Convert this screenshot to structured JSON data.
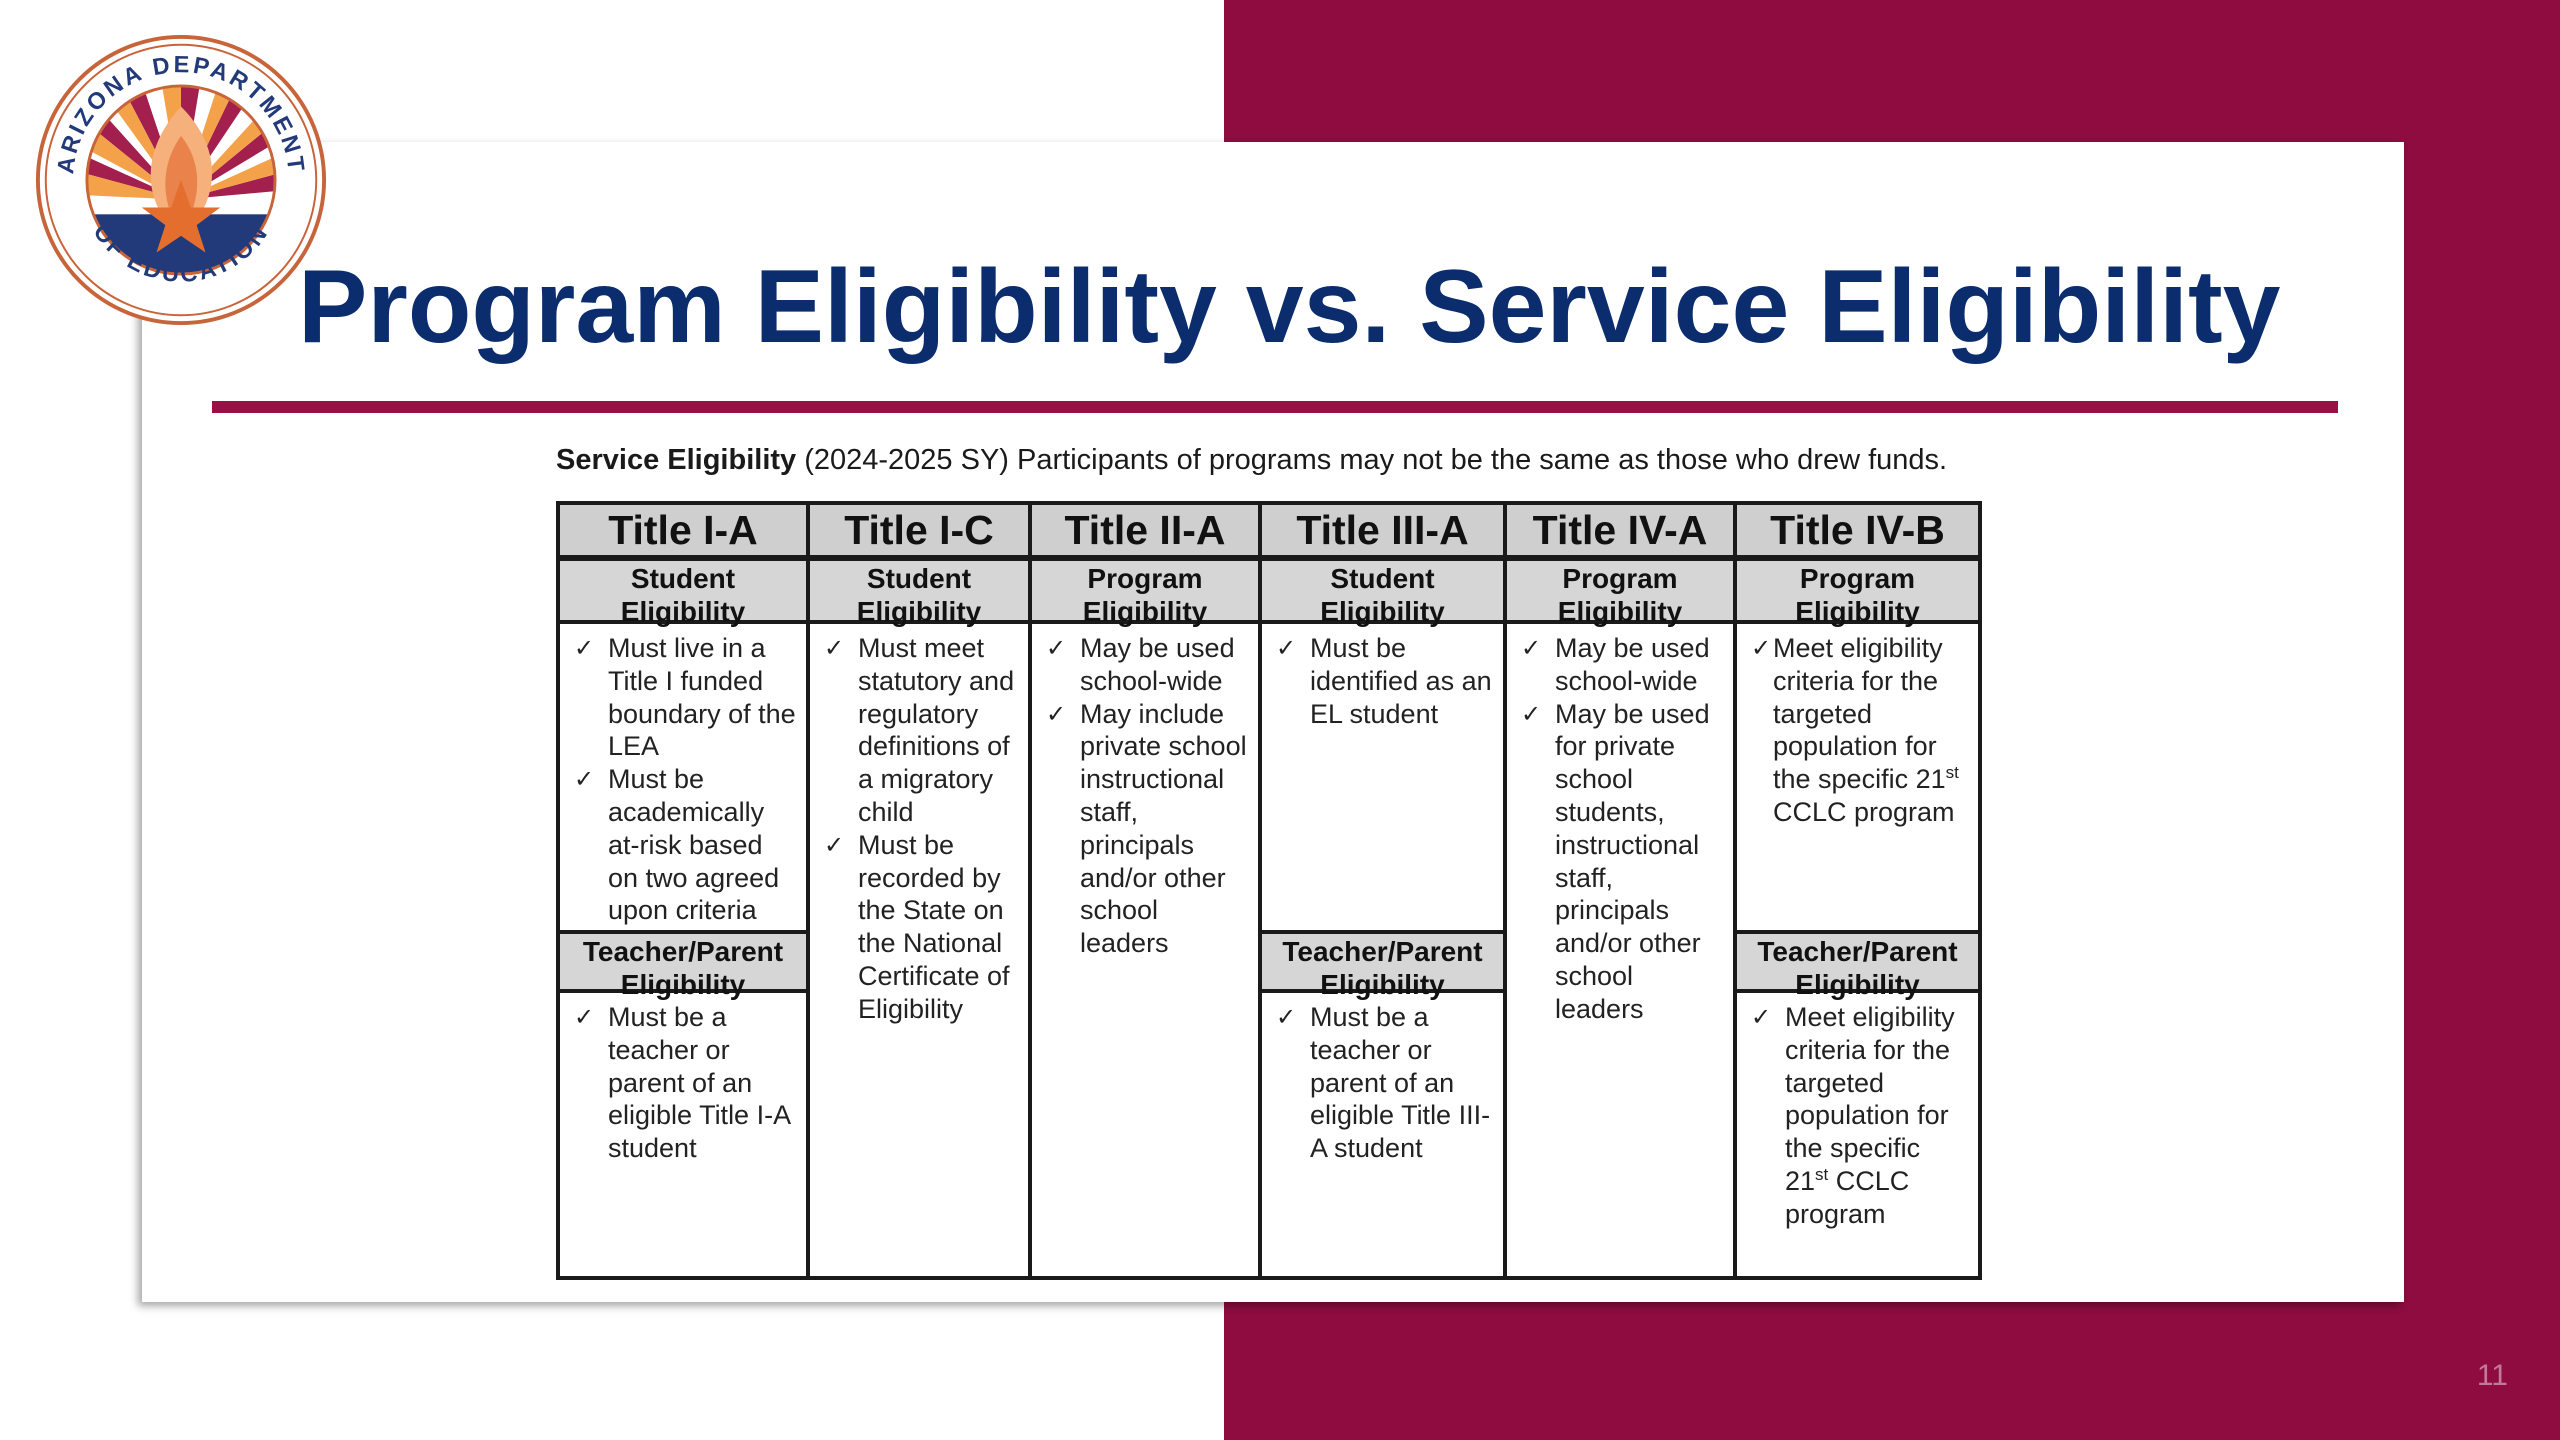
{
  "colors": {
    "brand_maroon": "#8e0c40",
    "title_blue": "#0b2d6e",
    "rule": "#9b0f45",
    "header_gray": "#cfcfcf"
  },
  "logo": {
    "name": "arizona-department-of-education-seal",
    "text": "ARIZONA DEPARTMENT OF EDUCATION"
  },
  "slide": {
    "title": "Program Eligibility vs. Service Eligibility",
    "caption_bold": "Service Eligibility",
    "caption_rest": " (2024-2025 SY) Participants of programs may not be the same as those who drew funds.",
    "page_number": "11"
  },
  "table": {
    "columns": [
      {
        "title": "Title I-A",
        "top_header": "Student Eligibility",
        "top_items": [
          "Must live in a Title I funded boundary of the LEA",
          "Must be academically at-risk based on two agreed upon criteria"
        ],
        "bottom_header": "Teacher/Parent Eligibility",
        "bottom_items": [
          "Must be a teacher or parent of an eligible Title I-A student"
        ]
      },
      {
        "title": "Title I-C",
        "top_header": "Student Eligibility",
        "top_items": [
          "Must meet statutory and regulatory definitions of a migratory child",
          "Must be recorded by the State on the National Certificate of Eligibility"
        ]
      },
      {
        "title": "Title II-A",
        "top_header": "Program Eligibility",
        "top_items": [
          "May be used school-wide",
          "May include private school instructional staff, principals and/or other school leaders"
        ]
      },
      {
        "title": "Title III-A",
        "top_header": "Student Eligibility",
        "top_items": [
          "Must be identified as an EL student"
        ],
        "bottom_header": "Teacher/Parent Eligibility",
        "bottom_items": [
          "Must be a teacher or parent of an eligible Title III-A student"
        ]
      },
      {
        "title": "Title IV-A",
        "top_header": "Program Eligibility",
        "top_items": [
          "May be used school-wide",
          "May be used for private school students, instructional staff, principals and/or other school leaders"
        ]
      },
      {
        "title": "Title IV-B",
        "top_header": "Program Eligibility",
        "top_items_prefix": "Meet eligibility criteria for the targeted population for the specific 21",
        "top_items_sup": "st",
        "top_items_suffix": " CCLC program",
        "bottom_header": "Teacher/Parent Eligibility",
        "bottom_items_prefix": "Meet eligibility criteria for the targeted population for the specific 21",
        "bottom_items_sup": "st",
        "bottom_items_suffix": " CCLC program"
      }
    ]
  }
}
